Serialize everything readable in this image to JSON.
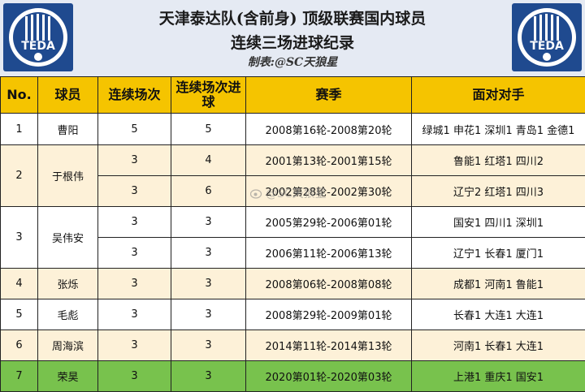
{
  "header": {
    "title_line1": "天津泰达队(含前身) 顶级联赛国内球员",
    "title_line2": "连续三场进球纪录",
    "credit": "制表:@SC天狼星",
    "logo_text": "TEDA"
  },
  "table": {
    "headers": {
      "no": "No.",
      "player": "球员",
      "matches": "连续场次",
      "goals": "连续场次进球",
      "season": "赛季",
      "opponents": "面对对手"
    },
    "players": [
      {
        "no": "1",
        "name": "曹阳",
        "rows": [
          {
            "matches": "5",
            "goals": "5",
            "season": "2008第16轮-2008第20轮",
            "opponents": "绿城1 申花1 深圳1 青岛1 金德1"
          }
        ]
      },
      {
        "no": "2",
        "name": "于根伟",
        "rows": [
          {
            "matches": "3",
            "goals": "4",
            "season": "2001第13轮-2001第15轮",
            "opponents": "鲁能1 红塔1 四川2"
          },
          {
            "matches": "3",
            "goals": "6",
            "season": "2002第28轮-2002第30轮",
            "opponents": "辽宁2 红塔1 四川3"
          }
        ]
      },
      {
        "no": "3",
        "name": "吴伟安",
        "rows": [
          {
            "matches": "3",
            "goals": "3",
            "season": "2005第29轮-2006第01轮",
            "opponents": "国安1 四川1 深圳1"
          },
          {
            "matches": "3",
            "goals": "3",
            "season": "2006第11轮-2006第13轮",
            "opponents": "辽宁1 长春1 厦门1"
          }
        ]
      },
      {
        "no": "4",
        "name": "张烁",
        "rows": [
          {
            "matches": "3",
            "goals": "3",
            "season": "2008第06轮-2008第08轮",
            "opponents": "成都1 河南1 鲁能1"
          }
        ]
      },
      {
        "no": "5",
        "name": "毛彪",
        "rows": [
          {
            "matches": "3",
            "goals": "3",
            "season": "2008第29轮-2009第01轮",
            "opponents": "长春1 大连1 大连1"
          }
        ]
      },
      {
        "no": "6",
        "name": "周海滨",
        "rows": [
          {
            "matches": "3",
            "goals": "3",
            "season": "2014第11轮-2014第13轮",
            "opponents": "河南1 长春1 大连1"
          }
        ]
      },
      {
        "no": "7",
        "name": "荣昊",
        "rows": [
          {
            "matches": "3",
            "goals": "3",
            "season": "2020第01轮-2020第03轮",
            "opponents": "上港1 重庆1 国安1"
          }
        ]
      }
    ]
  },
  "watermark": "@SC天狼星",
  "colors": {
    "header_bg": "#f5c400",
    "row_cream": "#fdf1d8",
    "row_white": "#ffffff",
    "row_green": "#78c24d",
    "logo_blue": "#1f4a8f"
  }
}
